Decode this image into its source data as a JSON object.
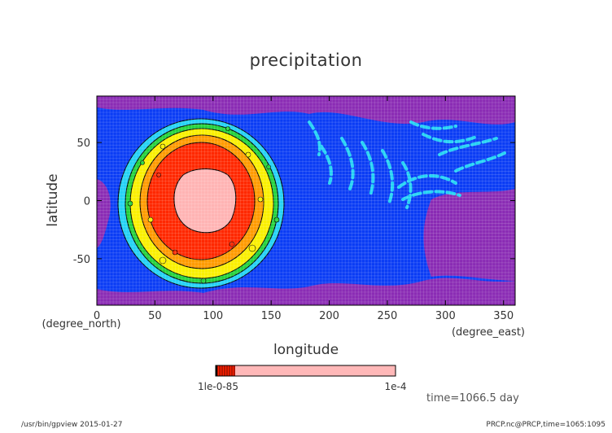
{
  "chart_data": {
    "type": "heatmap",
    "title": "precipitation",
    "xlabel": "longitude",
    "xunit": "(degree_east)",
    "ylabel": "latitude",
    "yunit": "(degree_north)",
    "xlim": [
      0,
      360
    ],
    "ylim": [
      -90,
      90
    ],
    "xticks": [
      0,
      50,
      100,
      150,
      200,
      250,
      300,
      350
    ],
    "yticks": [
      -50,
      0,
      50
    ],
    "grid": true,
    "colorbar": {
      "left_labels": "1e-95 through 1e-5 (overlapping)",
      "right_label": "1e-4",
      "colors": [
        "#000000",
        "#ff2000",
        "#ffb8b8"
      ]
    },
    "palette": {
      "purple": "#8a2bb4",
      "blue": "#0a3cf5",
      "cyan": "#23d2f5",
      "green": "#23d23c",
      "yellow": "#faf000",
      "orange": "#ff9b00",
      "red": "#ff2800",
      "pink": "#ffb4b4"
    },
    "annotation": "time=1066.5 day"
  },
  "labels": {
    "title": "precipitation",
    "xlabel": "longitude",
    "xunit": "(degree_east)",
    "ylabel": "latitude",
    "yunit": "(degree_north)",
    "colorbar_left": "1le-0-85",
    "colorbar_right": "1e-4",
    "time": "time=1066.5 day"
  },
  "footer": {
    "left": "/usr/bin/gpview  2015-01-27",
    "right": "PRCP.nc@PRCP,time=1065:1095"
  }
}
